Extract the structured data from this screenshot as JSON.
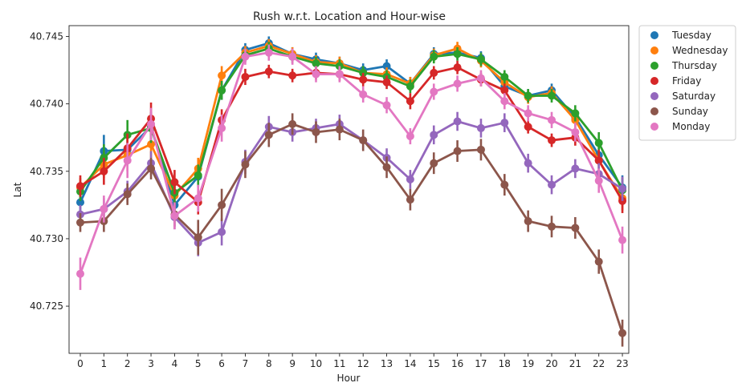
{
  "chart_data": {
    "type": "line",
    "title": "Rush w.r.t. Location and Hour-wise",
    "xlabel": "Hour",
    "ylabel": "Lat",
    "categories": [
      "0",
      "1",
      "2",
      "3",
      "4",
      "5",
      "6",
      "7",
      "8",
      "9",
      "10",
      "11",
      "12",
      "13",
      "14",
      "15",
      "16",
      "17",
      "18",
      "19",
      "20",
      "21",
      "22",
      "23"
    ],
    "ylim": [
      40.7215,
      40.7458
    ],
    "yticks": [
      40.725,
      40.73,
      40.735,
      40.74,
      40.745
    ],
    "ytick_labels": [
      "40.725",
      "40.730",
      "40.735",
      "40.740",
      "40.745"
    ],
    "grid": false,
    "legend_position": "outside-right",
    "error_bars": true,
    "series": [
      {
        "name": "Tuesday",
        "color": "#1f77b4",
        "values": [
          40.7327,
          40.7365,
          40.7366,
          40.7383,
          40.7325,
          40.7346,
          40.741,
          40.744,
          40.7445,
          40.7437,
          40.7433,
          40.743,
          40.7425,
          40.7428,
          40.7415,
          40.7437,
          40.7438,
          40.7434,
          40.7413,
          40.7406,
          40.741,
          40.739,
          40.7362,
          40.7338
        ],
        "errors": [
          0.0007,
          0.0012,
          0.001,
          0.0011,
          0.0009,
          0.0008,
          0.0007,
          0.0005,
          0.0005,
          0.0005,
          0.0005,
          0.0005,
          0.0005,
          0.0005,
          0.0005,
          0.0005,
          0.0005,
          0.0005,
          0.0005,
          0.0005,
          0.0005,
          0.0006,
          0.0008,
          0.0009
        ]
      },
      {
        "name": "Wednesday",
        "color": "#ff7f0e",
        "values": [
          40.7338,
          40.7355,
          40.7362,
          40.737,
          40.7332,
          40.7352,
          40.7421,
          40.7438,
          40.7443,
          40.7437,
          40.7431,
          40.743,
          40.7423,
          40.7422,
          40.7415,
          40.7436,
          40.7441,
          40.7432,
          40.7416,
          40.7405,
          40.7408,
          40.7388,
          40.7358,
          40.733
        ],
        "errors": [
          0.0007,
          0.001,
          0.0012,
          0.001,
          0.0008,
          0.0008,
          0.0007,
          0.0005,
          0.0005,
          0.0005,
          0.0005,
          0.0005,
          0.0005,
          0.0005,
          0.0005,
          0.0005,
          0.0005,
          0.0005,
          0.0005,
          0.0005,
          0.0005,
          0.0006,
          0.0008,
          0.0009
        ]
      },
      {
        "name": "Thursday",
        "color": "#2ca02c",
        "values": [
          40.7335,
          40.736,
          40.7377,
          40.7382,
          40.7334,
          40.7347,
          40.741,
          40.7436,
          40.7441,
          40.7435,
          40.743,
          40.7428,
          40.7423,
          40.742,
          40.7413,
          40.7435,
          40.7437,
          40.7433,
          40.742,
          40.7406,
          40.7406,
          40.7393,
          40.7371,
          40.7336
        ],
        "errors": [
          0.0007,
          0.001,
          0.0011,
          0.0011,
          0.0008,
          0.0008,
          0.0007,
          0.0005,
          0.0005,
          0.0005,
          0.0005,
          0.0005,
          0.0005,
          0.0005,
          0.0005,
          0.0005,
          0.0005,
          0.0005,
          0.0005,
          0.0005,
          0.0005,
          0.0006,
          0.0008,
          0.0009
        ]
      },
      {
        "name": "Friday",
        "color": "#d62728",
        "values": [
          40.7339,
          40.735,
          40.7367,
          40.7389,
          40.7342,
          40.7327,
          40.7388,
          40.742,
          40.7424,
          40.7421,
          40.7423,
          40.7422,
          40.7418,
          40.7416,
          40.7402,
          40.7423,
          40.7427,
          40.7418,
          40.741,
          40.7383,
          40.7373,
          40.7375,
          40.7358,
          40.7328
        ],
        "errors": [
          0.0008,
          0.001,
          0.0011,
          0.0012,
          0.0009,
          0.0009,
          0.0008,
          0.0006,
          0.0005,
          0.0005,
          0.0005,
          0.0005,
          0.0005,
          0.0005,
          0.0006,
          0.0005,
          0.0005,
          0.0005,
          0.0005,
          0.0005,
          0.0005,
          0.0006,
          0.0008,
          0.0009
        ]
      },
      {
        "name": "Saturday",
        "color": "#9467bd",
        "values": [
          40.7318,
          40.7322,
          40.7335,
          40.7356,
          40.7316,
          40.7297,
          40.7305,
          40.7357,
          40.7383,
          40.7379,
          40.7382,
          40.7385,
          40.7373,
          40.736,
          40.7344,
          40.7377,
          40.7387,
          40.7382,
          40.7386,
          40.7356,
          40.734,
          40.7352,
          40.7348,
          40.7337
        ],
        "errors": [
          0.0007,
          0.0008,
          0.0008,
          0.0009,
          0.0009,
          0.001,
          0.001,
          0.0009,
          0.0008,
          0.0007,
          0.0007,
          0.0007,
          0.0007,
          0.0007,
          0.0007,
          0.0007,
          0.0007,
          0.0007,
          0.0007,
          0.0007,
          0.0007,
          0.0007,
          0.0008,
          0.0009
        ]
      },
      {
        "name": "Sunday",
        "color": "#8c564b",
        "values": [
          40.7312,
          40.7313,
          40.7333,
          40.7352,
          40.7318,
          40.7301,
          40.7325,
          40.7355,
          40.7377,
          40.7385,
          40.7379,
          40.7381,
          40.7373,
          40.7353,
          40.7329,
          40.7356,
          40.7365,
          40.7366,
          40.734,
          40.7313,
          40.7309,
          40.7308,
          40.7283,
          40.723
        ],
        "errors": [
          0.0007,
          0.0008,
          0.0008,
          0.0008,
          0.0009,
          0.0013,
          0.0012,
          0.001,
          0.0009,
          0.0008,
          0.0008,
          0.0008,
          0.0008,
          0.0008,
          0.0008,
          0.0008,
          0.0008,
          0.0008,
          0.0008,
          0.0008,
          0.0008,
          0.0008,
          0.0009,
          0.001
        ]
      },
      {
        "name": "Monday",
        "color": "#e377c2",
        "values": [
          40.7274,
          40.7322,
          40.7358,
          40.7385,
          40.7317,
          40.733,
          40.7382,
          40.7435,
          40.7438,
          40.7435,
          40.7422,
          40.7422,
          40.7407,
          40.7399,
          40.7376,
          40.7409,
          40.7415,
          40.7419,
          40.7402,
          40.7393,
          40.7388,
          40.7379,
          40.7343,
          40.7299
        ],
        "errors": [
          0.0012,
          0.001,
          0.0013,
          0.0012,
          0.001,
          0.001,
          0.001,
          0.0006,
          0.0006,
          0.0006,
          0.0006,
          0.0006,
          0.0006,
          0.0006,
          0.0006,
          0.0006,
          0.0006,
          0.0006,
          0.0006,
          0.0006,
          0.0006,
          0.0007,
          0.0009,
          0.001
        ]
      }
    ]
  }
}
